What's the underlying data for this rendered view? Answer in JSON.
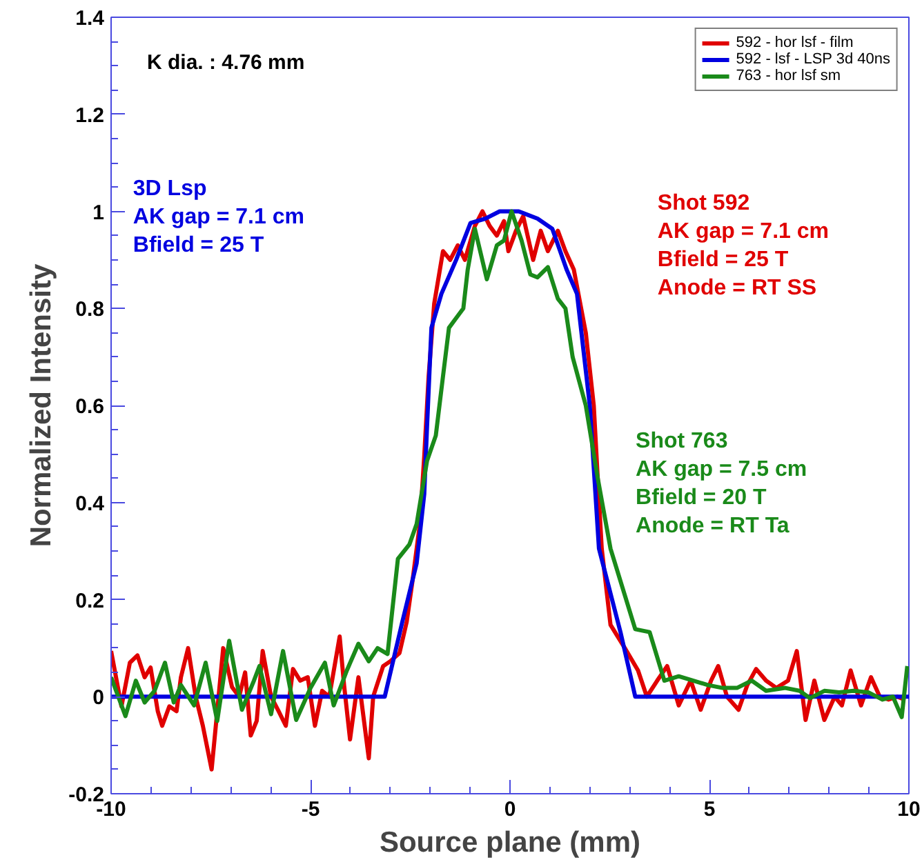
{
  "chart_data": {
    "type": "line",
    "xlabel": "Source plane (mm)",
    "ylabel": "Normalized Intensity",
    "xlim": [
      -10,
      10
    ],
    "ylim": [
      -0.2,
      1.4
    ],
    "xticks": [
      -10,
      -5,
      0,
      5,
      10
    ],
    "yticks": [
      -0.2,
      0,
      0.2,
      0.4,
      0.6,
      0.8,
      1,
      1.2,
      1.4
    ],
    "grid": false,
    "legend": "top right",
    "marker": "none",
    "line_style": "solid",
    "annotations": [
      "K dia. : 4.76 mm",
      "3D Lsp\nAK gap = 7.1 cm\nBfield = 25 T",
      "Shot 592\nAK gap = 7.1 cm\nBfield = 25 T\nAnode = RT SS",
      "Shot 763\nAK gap = 7.5 cm\nBfield = 20 T\nAnode = RT Ta"
    ],
    "series": [
      {
        "name": "592 - hor lsf - film",
        "color": "#e00000",
        "x": [
          -10,
          -9.74,
          -9.53,
          -9.34,
          -9.16,
          -9.01,
          -8.83,
          -8.72,
          -8.54,
          -8.36,
          -8.25,
          -8.07,
          -7.88,
          -7.7,
          -7.48,
          -7.34,
          -7.19,
          -6.97,
          -6.79,
          -6.64,
          -6.5,
          -6.35,
          -6.2,
          -5.99,
          -5.8,
          -5.62,
          -5.44,
          -5.26,
          -5.07,
          -4.89,
          -4.71,
          -4.53,
          -4.27,
          -4.16,
          -4.01,
          -3.8,
          -3.54,
          -3.43,
          -3.18,
          -3.0,
          -2.77,
          -2.59,
          -2.45,
          -2.26,
          -2.15,
          -2.04,
          -1.9,
          -1.68,
          -1.5,
          -1.31,
          -1.13,
          -0.88,
          -0.69,
          -0.51,
          -0.33,
          -0.15,
          -0.04,
          0.15,
          0.33,
          0.58,
          0.77,
          0.95,
          1.2,
          1.39,
          1.6,
          1.9,
          2.1,
          2.2,
          2.3,
          2.52,
          2.88,
          3.21,
          3.43,
          3.69,
          3.94,
          4.23,
          4.53,
          4.78,
          5.04,
          5.22,
          5.44,
          5.73,
          5.95,
          6.17,
          6.42,
          6.68,
          6.97,
          7.19,
          7.41,
          7.63,
          7.88,
          8.14,
          8.32,
          8.54,
          8.8,
          9.05,
          9.27,
          9.49,
          9.71,
          9.89
        ],
        "values": [
          0.094,
          -0.02,
          0.07,
          0.085,
          0.04,
          0.06,
          -0.03,
          -0.06,
          -0.02,
          -0.03,
          0.04,
          0.1,
          0.0,
          -0.06,
          -0.15,
          -0.03,
          0.1,
          0.02,
          0.0,
          0.05,
          -0.08,
          -0.05,
          0.094,
          0.0,
          -0.03,
          -0.06,
          0.057,
          0.033,
          0.04,
          -0.06,
          0.012,
          0.0,
          0.124,
          0.024,
          -0.088,
          0.04,
          -0.127,
          0.0,
          0.063,
          0.073,
          0.09,
          0.154,
          0.235,
          0.356,
          0.495,
          0.66,
          0.81,
          0.918,
          0.9,
          0.93,
          0.9,
          0.97,
          1.0,
          0.97,
          0.95,
          0.98,
          0.918,
          0.96,
          0.99,
          0.9,
          0.96,
          0.918,
          0.96,
          0.918,
          0.88,
          0.75,
          0.6,
          0.45,
          0.305,
          0.148,
          0.1,
          0.054,
          0.0,
          0.033,
          0.063,
          -0.018,
          0.033,
          -0.027,
          0.033,
          0.063,
          0.0,
          -0.027,
          0.024,
          0.057,
          0.033,
          0.018,
          0.033,
          0.094,
          -0.048,
          0.033,
          -0.048,
          0.0,
          -0.018,
          0.054,
          -0.018,
          0.04,
          0.0,
          -0.006,
          0.0,
          -0.006
        ]
      },
      {
        "name": "592 - lsf - LSP 3d 40ns",
        "color": "#0000e0",
        "x": [
          -10,
          -3.14,
          -2.7,
          -2.34,
          -2.15,
          -2.08,
          -1.97,
          -1.72,
          -1.35,
          -0.99,
          -0.62,
          -0.26,
          0.22,
          0.69,
          1.06,
          1.42,
          1.68,
          2.0,
          2.23,
          2.77,
          3.14,
          10
        ],
        "values": [
          0,
          0,
          0.154,
          0.275,
          0.417,
          0.556,
          0.76,
          0.83,
          0.9,
          0.976,
          0.985,
          1.0,
          1.0,
          0.985,
          0.964,
          0.88,
          0.83,
          0.6,
          0.305,
          0.133,
          0,
          0
        ]
      },
      {
        "name": "763 - hor lsf sm",
        "color": "#1a8a1a",
        "x": [
          -10,
          -9.64,
          -9.38,
          -9.16,
          -8.91,
          -8.65,
          -8.43,
          -8.25,
          -7.92,
          -7.63,
          -7.34,
          -7.04,
          -6.72,
          -6.42,
          -6.28,
          -5.99,
          -5.69,
          -5.36,
          -5.0,
          -4.64,
          -4.42,
          -4.09,
          -3.8,
          -3.54,
          -3.32,
          -3.07,
          -2.81,
          -2.52,
          -2.34,
          -2.08,
          -1.86,
          -1.68,
          -1.53,
          -1.35,
          -1.17,
          -1.06,
          -0.88,
          -0.58,
          -0.33,
          -0.15,
          0.04,
          0.29,
          0.51,
          0.69,
          0.95,
          1.2,
          1.39,
          1.57,
          1.9,
          2.2,
          2.52,
          3.14,
          3.5,
          3.87,
          4.23,
          4.6,
          4.96,
          5.33,
          5.69,
          6.06,
          6.42,
          6.9,
          7.26,
          7.52,
          7.88,
          8.25,
          8.61,
          8.98,
          9.34,
          9.6,
          9.82,
          9.96
        ],
        "values": [
          0.04,
          -0.04,
          0.033,
          -0.012,
          0.012,
          0.07,
          -0.012,
          0.024,
          -0.018,
          0.07,
          -0.05,
          0.115,
          -0.027,
          0.033,
          0.063,
          -0.036,
          0.094,
          -0.048,
          0.018,
          0.07,
          -0.018,
          0.054,
          0.109,
          0.073,
          0.1,
          0.088,
          0.284,
          0.314,
          0.356,
          0.486,
          0.538,
          0.66,
          0.76,
          0.78,
          0.8,
          0.88,
          0.964,
          0.86,
          0.93,
          0.94,
          1.0,
          0.94,
          0.87,
          0.864,
          0.885,
          0.82,
          0.8,
          0.7,
          0.6,
          0.45,
          0.305,
          0.139,
          0.133,
          0.033,
          0.042,
          0.033,
          0.024,
          0.018,
          0.018,
          0.033,
          0.012,
          0.018,
          0.012,
          -0.003,
          0.012,
          0.009,
          0.012,
          0.009,
          -0.006,
          0,
          -0.042,
          0.063
        ]
      }
    ]
  }
}
